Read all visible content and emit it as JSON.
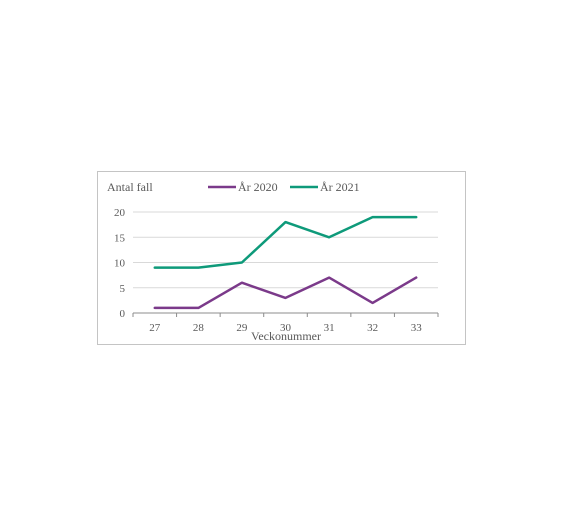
{
  "chart_data": {
    "type": "line",
    "title": "Antal fall",
    "xlabel": "Veckonummer",
    "ylabel": "",
    "categories": [
      "27",
      "28",
      "29",
      "30",
      "31",
      "32",
      "33"
    ],
    "series": [
      {
        "name": "År 2020",
        "color": "#7b3a8a",
        "values": [
          1,
          1,
          6,
          3,
          7,
          2,
          7
        ]
      },
      {
        "name": "År 2021",
        "color": "#0e9a7a",
        "values": [
          9,
          9,
          10,
          18,
          15,
          19,
          19
        ]
      }
    ],
    "ylim": [
      0,
      20
    ],
    "yticks": [
      "0",
      "5",
      "10",
      "15",
      "20"
    ],
    "grid": true,
    "legend_position": "top"
  }
}
